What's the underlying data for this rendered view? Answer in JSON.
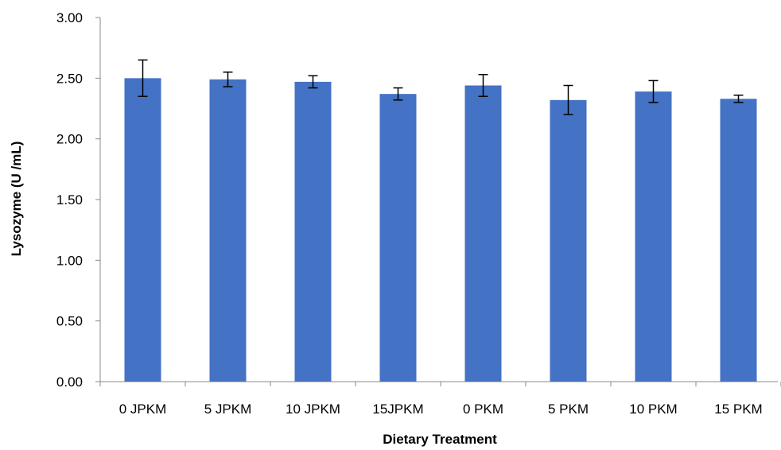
{
  "chart_data": {
    "type": "bar",
    "title": "",
    "xlabel": "Dietary Treatment",
    "ylabel": "Lysozyme (U /mL)",
    "categories": [
      "0 JPKM",
      "5 JPKM",
      "10 JPKM",
      "15JPKM",
      "0 PKM",
      "5 PKM",
      "10 PKM",
      "15 PKM"
    ],
    "values": [
      2.5,
      2.49,
      2.47,
      2.37,
      2.44,
      2.32,
      2.39,
      2.33
    ],
    "errors": [
      0.15,
      0.06,
      0.05,
      0.05,
      0.09,
      0.12,
      0.09,
      0.03
    ],
    "ylim": [
      0,
      3
    ],
    "yticks": [
      "0.00",
      "0.50",
      "1.00",
      "1.50",
      "2.00",
      "2.50",
      "3.00"
    ],
    "grid": false,
    "legend": "none",
    "bar_color": "#4472C4",
    "axis_color": "#888888",
    "error_bar_color": "#000000"
  }
}
